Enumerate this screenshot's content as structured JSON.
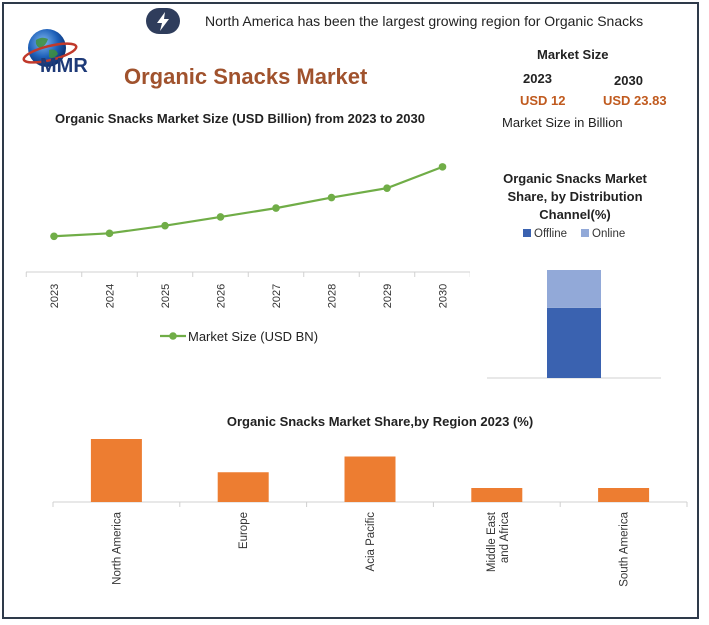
{
  "header": {
    "headline": "North America has been the largest growing region for Organic Snacks",
    "logo_text": "MMR",
    "title": "Organic Snacks Market",
    "bolt_icon": "lightning-bolt-icon"
  },
  "market_size": {
    "heading": "Market Size",
    "year_a": "2023",
    "year_b": "2030",
    "value_a": "USD 12",
    "value_b": "USD 23.83",
    "unit_note": "Market Size in Billion"
  },
  "colors": {
    "line": "#70ad47",
    "offline": "#3a62b0",
    "online": "#92a9d8",
    "bar": "#ed7d31",
    "title_brown": "#a0522d",
    "value_orange": "#c05a1e"
  },
  "chart_data": [
    {
      "type": "line",
      "title": "Organic Snacks Market Size (USD Billion) from 2023 to 2030",
      "x": [
        "2023",
        "2024",
        "2025",
        "2026",
        "2027",
        "2028",
        "2029",
        "2030"
      ],
      "series": [
        {
          "name": "Market Size (USD BN)",
          "values": [
            12.0,
            12.5,
            13.8,
            15.3,
            16.8,
            18.6,
            20.2,
            23.83
          ]
        }
      ],
      "legend": "bottom",
      "grid": false
    },
    {
      "type": "bar",
      "stacked": true,
      "title": "Organic Snacks Market Share, by Distribution Channel(%)",
      "title_lines": [
        "Organic Snacks Market",
        "Share, by Distribution",
        "Channel(%)"
      ],
      "categories": [
        ""
      ],
      "series": [
        {
          "name": "Offline",
          "values": [
            65
          ]
        },
        {
          "name": "Online",
          "values": [
            35
          ]
        }
      ],
      "ylim": [
        0,
        100
      ],
      "legend": "top"
    },
    {
      "type": "bar",
      "title": "Organic Snacks Market Share,by Region 2023 (%)",
      "categories": [
        "North America",
        "Europe",
        "Acia Pacific",
        "Middle East and Africa",
        "South America"
      ],
      "category_lines": [
        [
          "North America"
        ],
        [
          "Europe"
        ],
        [
          "Acia Pacific"
        ],
        [
          "Middle East",
          "and Africa"
        ],
        [
          "South America"
        ]
      ],
      "values": [
        36,
        17,
        26,
        8,
        8
      ],
      "ylim": [
        0,
        36
      ]
    }
  ]
}
